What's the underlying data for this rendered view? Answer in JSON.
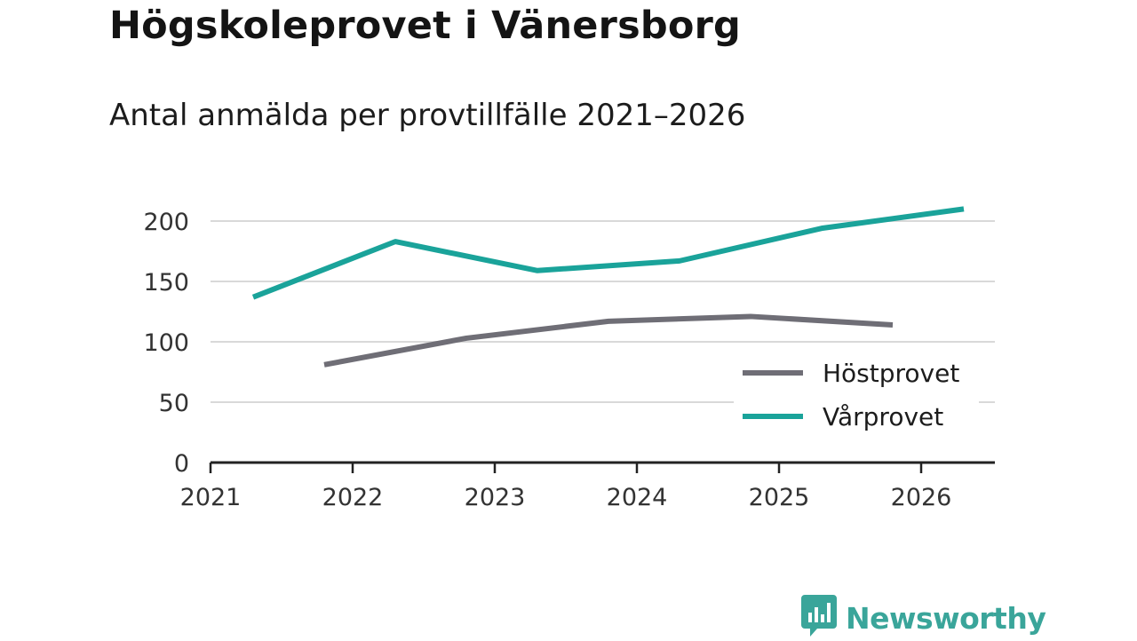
{
  "title": "Högskoleprovet i Vänersborg",
  "subtitle": "Antal anmälda per provtillfälle 2021–2026",
  "brand": {
    "name": "Newsworthy",
    "icon": "bar-chart-speech-bubble-icon",
    "color": "#3aa59a"
  },
  "chart_data": {
    "type": "line",
    "title": "Högskoleprovet i Vänersborg",
    "subtitle": "Antal anmälda per provtillfälle 2021–2026",
    "xlabel": "",
    "ylabel": "",
    "xlim": [
      2021,
      2026.55
    ],
    "ylim": [
      0,
      200
    ],
    "x_ticks": [
      "2021",
      "2022",
      "2023",
      "2024",
      "2025",
      "2026"
    ],
    "y_ticks": [
      "0",
      "50",
      "100",
      "150",
      "200"
    ],
    "grid": true,
    "legend_position": "lower-right",
    "series": [
      {
        "name": "Höstprovet",
        "color": "#6f6e76",
        "x": [
          2021.8,
          2022.8,
          2023.8,
          2024.8,
          2025.8
        ],
        "values": [
          81,
          103,
          117,
          121,
          114
        ]
      },
      {
        "name": "Vårprovet",
        "color": "#1aa39a",
        "x": [
          2021.3,
          2022.3,
          2023.3,
          2024.3,
          2025.3,
          2026.3
        ],
        "values": [
          137,
          183,
          159,
          167,
          194,
          210
        ]
      }
    ]
  }
}
